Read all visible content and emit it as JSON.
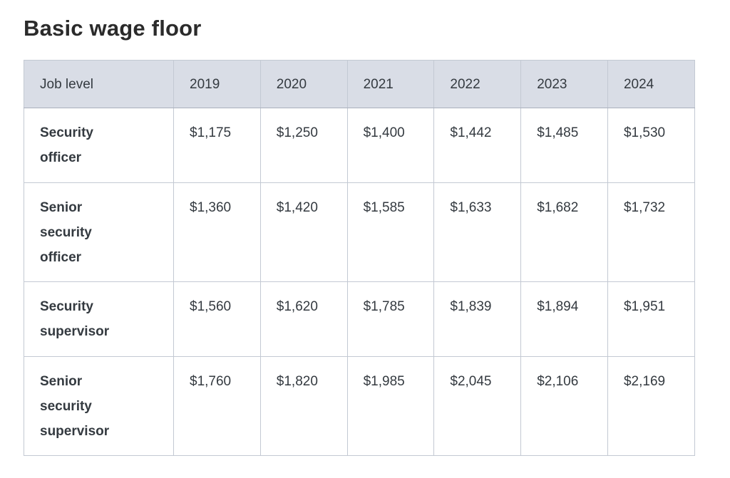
{
  "page": {
    "title": "Basic wage floor"
  },
  "table": {
    "columns": [
      "Job level",
      "2019",
      "2020",
      "2021",
      "2022",
      "2023",
      "2024"
    ],
    "rows": [
      {
        "label": "Security officer",
        "values": [
          "$1,175",
          "$1,250",
          "$1,400",
          "$1,442",
          "$1,485",
          "$1,530"
        ]
      },
      {
        "label": "Senior security officer",
        "values": [
          "$1,360",
          "$1,420",
          "$1,585",
          "$1,633",
          "$1,682",
          "$1,732"
        ]
      },
      {
        "label": "Security supervisor",
        "values": [
          "$1,560",
          "$1,620",
          "$1,785",
          "$1,839",
          "$1,894",
          "$1,951"
        ]
      },
      {
        "label": "Senior security supervisor",
        "values": [
          "$1,760",
          "$1,820",
          "$1,985",
          "$2,045",
          "$2,106",
          "$2,169"
        ]
      }
    ]
  },
  "colors": {
    "header_bg": "#d9dde6",
    "border": "#c3c9d3",
    "border_strong": "#a9b0bd",
    "text": "#343a40",
    "title": "#2b2b2b",
    "page_bg": "#ffffff"
  }
}
